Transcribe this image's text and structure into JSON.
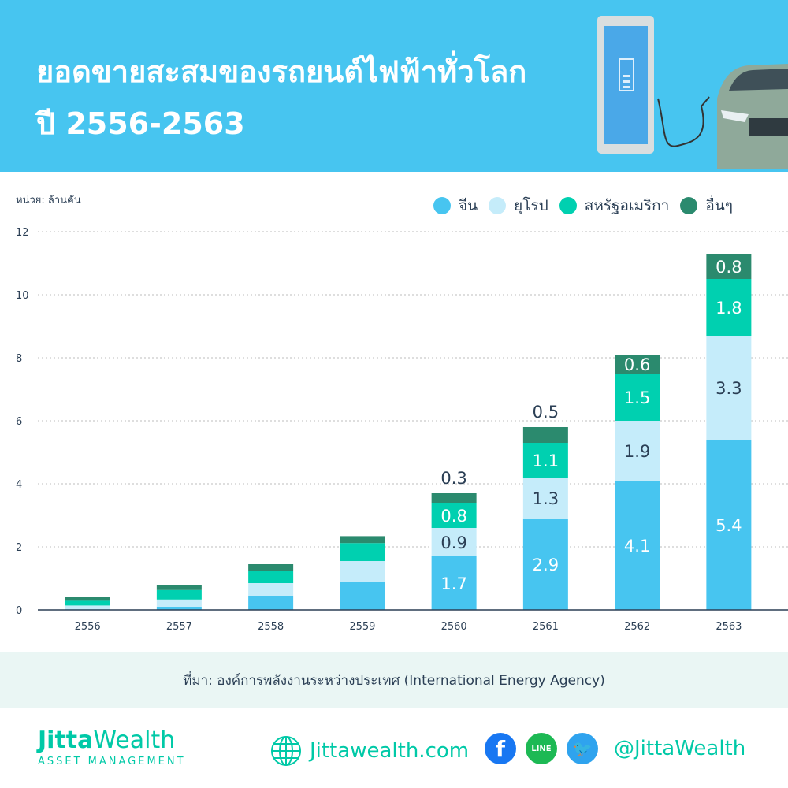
{
  "header": {
    "title_line1": "ยอดขายสะสมของรถยนต์ไฟฟ้าทั่วโลก",
    "title_line2": "ปี 2556-2563",
    "bg_color": "#47C5F0"
  },
  "chart_data": {
    "type": "bar",
    "stacked": true,
    "ylabel": "หน่วย: ล้านคัน",
    "ylim": [
      0,
      12
    ],
    "yticks": [
      "0",
      "2",
      "4",
      "6",
      "8",
      "10",
      "12"
    ],
    "grid": true,
    "legend_placement": "top-right",
    "categories": [
      "2556",
      "2557",
      "2558",
      "2559",
      "2560",
      "2561",
      "2562",
      "2563"
    ],
    "series": [
      {
        "name": "จีน",
        "color": "#47C5F0",
        "values": [
          0.02,
          0.1,
          0.45,
          0.9,
          1.7,
          2.9,
          4.1,
          5.4
        ],
        "labels": [
          null,
          null,
          null,
          null,
          "1.7",
          "2.9",
          "4.1",
          "5.4"
        ]
      },
      {
        "name": "ยุโรป",
        "color": "#C5ECFA",
        "values": [
          0.12,
          0.23,
          0.4,
          0.65,
          0.9,
          1.3,
          1.9,
          3.3
        ],
        "labels": [
          null,
          null,
          null,
          null,
          "0.9",
          "1.3",
          "1.9",
          "3.3"
        ]
      },
      {
        "name": "สหรัฐอเมริกา",
        "color": "#00D0B0",
        "values": [
          0.15,
          0.3,
          0.4,
          0.57,
          0.8,
          1.1,
          1.5,
          1.8
        ],
        "labels": [
          null,
          null,
          null,
          null,
          "0.8",
          "1.1",
          "1.5",
          "1.8"
        ]
      },
      {
        "name": "อื่นๆ",
        "color": "#2B8A6E",
        "values": [
          0.13,
          0.15,
          0.2,
          0.22,
          0.3,
          0.5,
          0.6,
          0.8
        ],
        "labels": [
          null,
          null,
          null,
          null,
          "0.3",
          "0.5",
          "0.6",
          "0.8"
        ]
      }
    ]
  },
  "source": "ที่มา: องค์การพลังงานระหว่างประเทศ (International Energy Agency)",
  "footer": {
    "brand_bold": "Jitta",
    "brand_light": "Wealth",
    "brand_sub": "ASSET MANAGEMENT",
    "website": "Jittawealth.com",
    "line_label": "LINE",
    "handle": "@JittaWealth",
    "accent": "#00C9A7"
  }
}
